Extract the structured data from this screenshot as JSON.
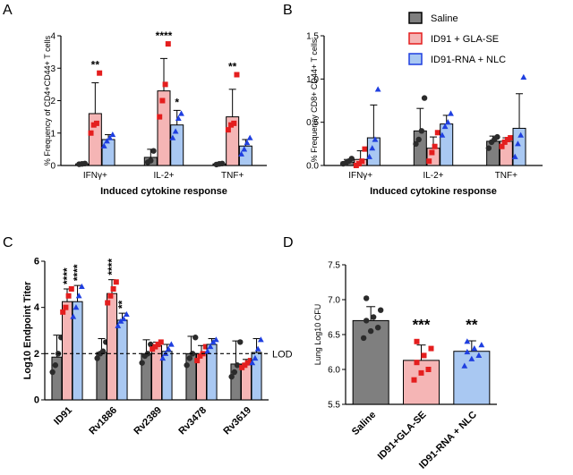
{
  "colors": {
    "saline_fill": "#7f7f7f",
    "gla_fill": "#f5b5b5",
    "rna_fill": "#a9c8f2",
    "saline_pt": "#2b2b2b",
    "gla_pt": "#e41e1e",
    "rna_pt": "#1f3fe0"
  },
  "chart_data": [
    {
      "panel": "A",
      "type": "bar",
      "ylabel": "% Frequency of CD4+CD44+ T cells",
      "xlabel": "Induced cytokine response",
      "ylim": [
        0,
        4
      ],
      "yticks": [
        "0",
        "1",
        "2",
        "3",
        "4"
      ],
      "categories": [
        "IFNγ+",
        "IL-2+",
        "TNF+"
      ],
      "series": [
        {
          "name": "Saline",
          "values": [
            0.05,
            0.25,
            0.05
          ],
          "err": [
            0.03,
            0.25,
            0.03
          ],
          "points": [
            [
              0.04,
              0.05,
              0.06
            ],
            [
              0.1,
              0.15,
              0.45
            ],
            [
              0.03,
              0.05,
              0.06
            ]
          ]
        },
        {
          "name": "ID91 + GLA-SE",
          "values": [
            1.6,
            2.3,
            1.5
          ],
          "err": [
            0.95,
            1.0,
            0.85
          ],
          "points": [
            [
              1.0,
              1.25,
              1.3,
              2.85
            ],
            [
              1.5,
              2.0,
              2.5,
              3.75
            ],
            [
              1.1,
              1.25,
              1.3,
              2.8
            ]
          ]
        },
        {
          "name": "ID91-RNA + NLC",
          "values": [
            0.8,
            1.25,
            0.6
          ],
          "err": [
            0.15,
            0.45,
            0.2
          ],
          "points": [
            [
              0.6,
              0.75,
              0.85,
              0.95
            ],
            [
              0.85,
              1.05,
              1.45,
              1.6
            ],
            [
              0.35,
              0.5,
              0.7,
              0.85
            ]
          ]
        }
      ],
      "significance": [
        {
          "category": 0,
          "series": 1,
          "label": "**"
        },
        {
          "category": 1,
          "series": 1,
          "label": "****"
        },
        {
          "category": 1,
          "series": 2,
          "label": "*"
        },
        {
          "category": 2,
          "series": 1,
          "label": "**"
        }
      ]
    },
    {
      "panel": "B",
      "type": "bar",
      "ylabel": "% Frequency CD8+ CD44+ T cells",
      "xlabel": "Induced cytokine response",
      "ylim": [
        0,
        1.5
      ],
      "yticks": [
        "0.0",
        "0.5",
        "1.0",
        "1.5"
      ],
      "categories": [
        "IFNγ+",
        "IL-2+",
        "TNF+"
      ],
      "series": [
        {
          "name": "Saline",
          "values": [
            0.04,
            0.4,
            0.28
          ],
          "err": [
            0.03,
            0.26,
            0.06
          ],
          "points": [
            [
              0.02,
              0.03,
              0.05,
              0.08
            ],
            [
              0.25,
              0.3,
              0.4,
              0.78
            ],
            [
              0.2,
              0.27,
              0.3,
              0.33
            ]
          ]
        },
        {
          "name": "ID91 + GLA-SE",
          "values": [
            0.07,
            0.2,
            0.28
          ],
          "err": [
            0.1,
            0.13,
            0.04
          ],
          "points": [
            [
              0.0,
              0.02,
              0.05,
              0.19
            ],
            [
              0.05,
              0.15,
              0.22,
              0.38
            ],
            [
              0.22,
              0.27,
              0.3,
              0.32
            ]
          ]
        },
        {
          "name": "ID91-RNA + NLC",
          "values": [
            0.32,
            0.48,
            0.43
          ],
          "err": [
            0.38,
            0.1,
            0.4
          ],
          "points": [
            [
              0.1,
              0.2,
              0.3,
              0.88
            ],
            [
              0.35,
              0.45,
              0.5,
              0.6
            ],
            [
              0.1,
              0.25,
              0.35,
              1.02
            ]
          ]
        }
      ],
      "legend": {
        "placement": "top-right",
        "entries": [
          "Saline",
          "ID91 + GLA-SE",
          "ID91-RNA + NLC"
        ]
      }
    },
    {
      "panel": "C",
      "type": "bar",
      "ylabel": "Log10 Endpoint Titer",
      "xlabel": "",
      "ylim": [
        0,
        6
      ],
      "yticks": [
        "0",
        "2",
        "4",
        "6"
      ],
      "categories": [
        "ID91",
        "Rv1886",
        "Rv2389",
        "Rv3478",
        "Rv3619"
      ],
      "reference_line": {
        "value": 2,
        "label": "LOD"
      },
      "series": [
        {
          "name": "Saline",
          "values": [
            1.85,
            2.05,
            2.0,
            2.0,
            1.55
          ],
          "err": [
            0.95,
            0.6,
            0.6,
            0.75,
            1.0
          ],
          "points": [
            [
              1.2,
              1.5,
              2.0,
              2.7
            ],
            [
              1.8,
              2.0,
              2.1,
              2.5
            ],
            [
              1.6,
              1.9,
              2.0,
              2.4
            ],
            [
              1.5,
              1.8,
              2.0,
              2.7
            ],
            [
              1.0,
              1.2,
              1.5,
              2.5
            ]
          ]
        },
        {
          "name": "ID91 + GLA-SE",
          "values": [
            4.25,
            4.6,
            2.35,
            2.0,
            1.55
          ],
          "err": [
            0.55,
            0.6,
            0.15,
            0.35,
            0.2
          ],
          "points": [
            [
              3.8,
              4.0,
              4.5,
              4.8
            ],
            [
              4.2,
              4.5,
              4.8,
              5.1
            ],
            [
              2.2,
              2.3,
              2.4,
              2.5
            ],
            [
              1.7,
              1.9,
              2.0,
              2.3
            ],
            [
              1.4,
              1.5,
              1.6,
              1.7
            ]
          ]
        },
        {
          "name": "ID91-RNA + NLC",
          "values": [
            4.25,
            3.45,
            2.1,
            2.4,
            2.05
          ],
          "err": [
            0.7,
            0.3,
            0.3,
            0.25,
            0.6
          ],
          "points": [
            [
              3.6,
              4.0,
              4.5,
              4.9
            ],
            [
              3.2,
              3.4,
              3.5,
              3.7
            ],
            [
              1.8,
              2.0,
              2.2,
              2.4
            ],
            [
              2.1,
              2.3,
              2.5,
              2.6
            ],
            [
              1.6,
              1.8,
              2.2,
              2.6
            ]
          ]
        }
      ],
      "significance": [
        {
          "category": 0,
          "series": 1,
          "label": "****"
        },
        {
          "category": 0,
          "series": 2,
          "label": "****"
        },
        {
          "category": 1,
          "series": 1,
          "label": "****"
        },
        {
          "category": 1,
          "series": 2,
          "label": "**"
        }
      ]
    },
    {
      "panel": "D",
      "type": "bar",
      "ylabel": "Lung Log10 CFU",
      "xlabel": "",
      "ylim": [
        5.5,
        7.5
      ],
      "yticks": [
        "5.5",
        "6.0",
        "6.5",
        "7.0",
        "7.5"
      ],
      "categories": [
        "Saline",
        "ID91+GLA-SE",
        "ID91-RNA + NLC"
      ],
      "values": [
        6.7,
        6.13,
        6.26
      ],
      "err": [
        0.2,
        0.22,
        0.15
      ],
      "points": [
        [
          6.45,
          6.55,
          6.6,
          6.7,
          6.75,
          6.85,
          7.02
        ],
        [
          5.85,
          5.95,
          6.0,
          6.1,
          6.2,
          6.3,
          6.4
        ],
        [
          6.05,
          6.15,
          6.2,
          6.25,
          6.3,
          6.35,
          6.4
        ]
      ],
      "significance": [
        {
          "category": 1,
          "label": "***"
        },
        {
          "category": 2,
          "label": "**"
        }
      ]
    }
  ]
}
